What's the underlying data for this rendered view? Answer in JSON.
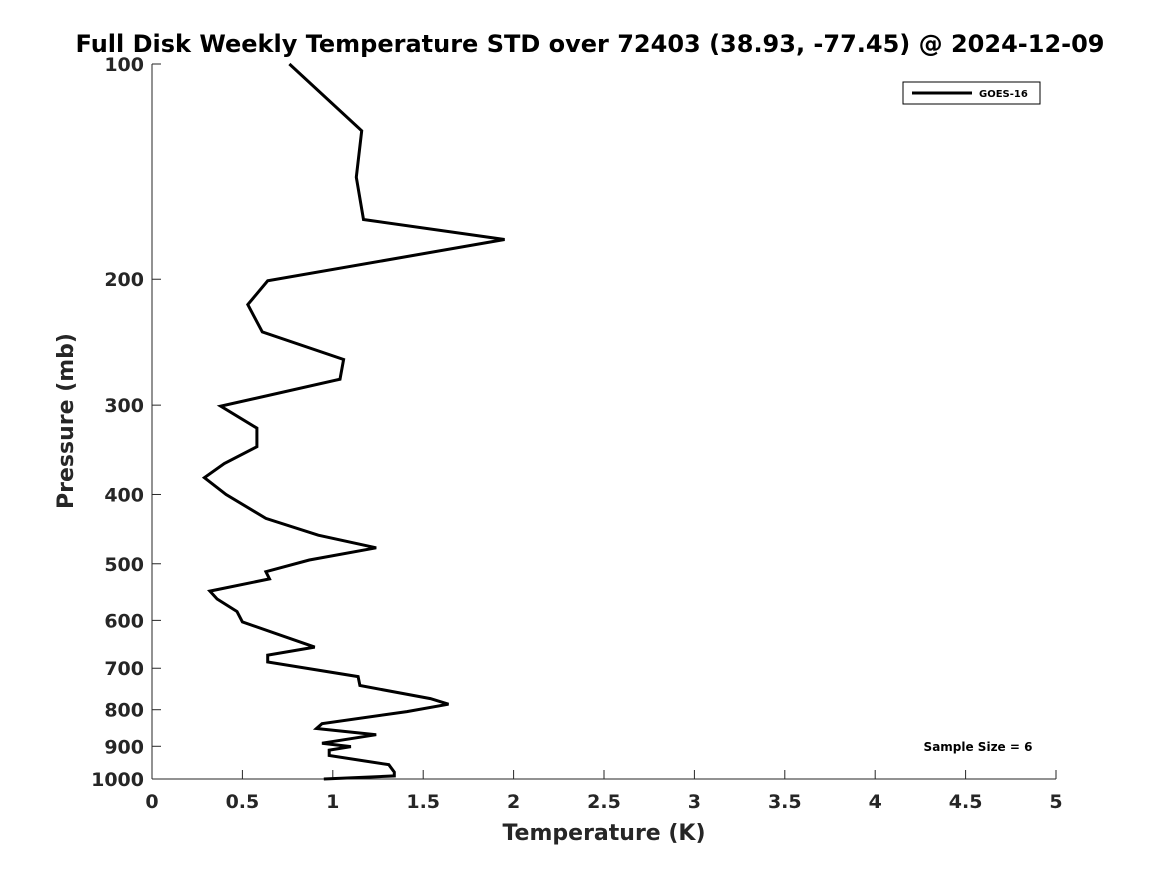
{
  "chart_data": {
    "type": "line",
    "title": "Full Disk Weekly Temperature STD over 72403 (38.93, -77.45) @ 2024-12-09",
    "xlabel": "Temperature (K)",
    "ylabel": "Pressure (mb)",
    "xlim": [
      0,
      5
    ],
    "ylim": [
      100,
      1000
    ],
    "y_scale": "log",
    "y_reversed": true,
    "xticks": [
      0,
      0.5,
      1,
      1.5,
      2,
      2.5,
      3,
      3.5,
      4,
      4.5,
      5
    ],
    "xtick_labels": [
      "0",
      "0.5",
      "1",
      "1.5",
      "2",
      "2.5",
      "3",
      "3.5",
      "4",
      "4.5",
      "5"
    ],
    "yticks": [
      100,
      200,
      300,
      400,
      500,
      600,
      700,
      800,
      900,
      1000
    ],
    "ytick_labels": [
      "100",
      "200",
      "300",
      "400",
      "500",
      "600",
      "700",
      "800",
      "900",
      "1000"
    ],
    "grid": false,
    "legend_position": "top-right",
    "series": [
      {
        "name": "GOES-16",
        "color": "#000000",
        "points": [
          [
            0.76,
            100
          ],
          [
            1.16,
            124
          ],
          [
            1.13,
            144
          ],
          [
            1.17,
            165
          ],
          [
            1.95,
            176
          ],
          [
            0.64,
            201
          ],
          [
            0.53,
            217
          ],
          [
            0.61,
            237
          ],
          [
            1.06,
            259
          ],
          [
            1.04,
            276
          ],
          [
            0.38,
            301
          ],
          [
            0.58,
            323
          ],
          [
            0.58,
            343
          ],
          [
            0.4,
            362
          ],
          [
            0.29,
            379
          ],
          [
            0.41,
            400
          ],
          [
            0.63,
            432
          ],
          [
            0.92,
            456
          ],
          [
            1.24,
            475
          ],
          [
            0.87,
            494
          ],
          [
            0.63,
            513
          ],
          [
            0.65,
            525
          ],
          [
            0.32,
            546
          ],
          [
            0.36,
            560
          ],
          [
            0.47,
            583
          ],
          [
            0.5,
            603
          ],
          [
            0.9,
            654
          ],
          [
            0.64,
            671
          ],
          [
            0.64,
            686
          ],
          [
            1.14,
            719
          ],
          [
            1.15,
            740
          ],
          [
            1.54,
            772
          ],
          [
            1.64,
            786
          ],
          [
            1.41,
            805
          ],
          [
            0.94,
            837
          ],
          [
            0.91,
            850
          ],
          [
            1.24,
            867
          ],
          [
            0.94,
            891
          ],
          [
            1.1,
            901
          ],
          [
            0.98,
            911
          ],
          [
            0.98,
            927
          ],
          [
            1.31,
            955
          ],
          [
            1.34,
            978
          ],
          [
            1.34,
            990
          ],
          [
            0.95,
            1000
          ]
        ]
      }
    ],
    "annotations": [
      "Sample Size = 6"
    ]
  }
}
